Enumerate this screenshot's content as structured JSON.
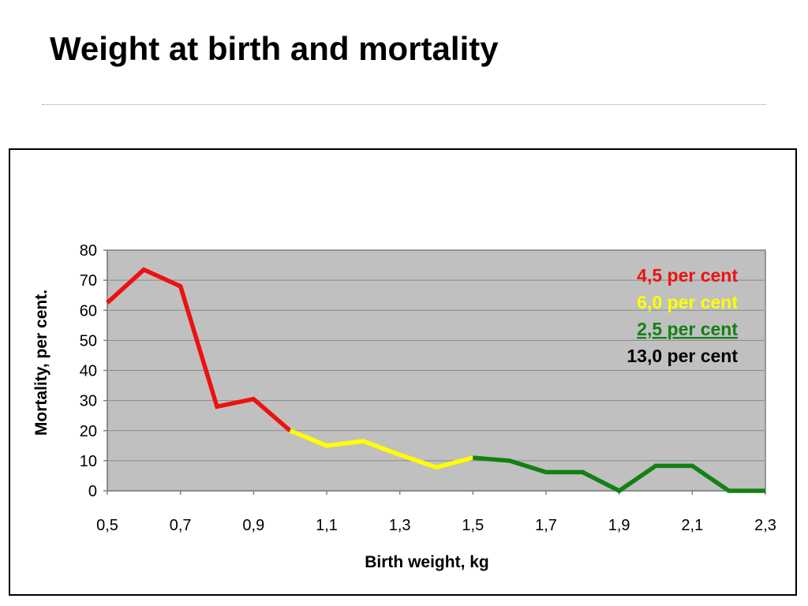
{
  "slide": {
    "title": "Weight at birth and mortality"
  },
  "chart_data": {
    "type": "line",
    "title": "",
    "xlabel": "Birth weight, kg",
    "ylabel": "Mortality, per cent.",
    "xlim": [
      0.5,
      2.3
    ],
    "ylim": [
      0,
      80
    ],
    "x_ticks": [
      "0,5",
      "0,7",
      "0,9",
      "1,1",
      "1,3",
      "1,5",
      "1,7",
      "1,9",
      "2,1",
      "2,3"
    ],
    "x_tick_values": [
      0.5,
      0.7,
      0.9,
      1.1,
      1.3,
      1.5,
      1.7,
      1.9,
      2.1,
      2.3
    ],
    "y_ticks": [
      "0",
      "10",
      "20",
      "30",
      "40",
      "50",
      "60",
      "70",
      "80"
    ],
    "y_tick_values": [
      0,
      10,
      20,
      30,
      40,
      50,
      60,
      70,
      80
    ],
    "grid": true,
    "plot_background": "#c0c0c0",
    "series": [
      {
        "color": "#ee1111",
        "x": [
          0.5,
          0.6,
          0.7,
          0.8,
          0.9,
          1.0
        ],
        "y": [
          62.5,
          73.5,
          68,
          28,
          30.5,
          20
        ]
      },
      {
        "color": "#ffff00",
        "x": [
          1.0,
          1.1,
          1.2,
          1.3,
          1.4,
          1.5
        ],
        "y": [
          20,
          15,
          16.5,
          12,
          7.8,
          11
        ]
      },
      {
        "color": "#138013",
        "x": [
          1.5,
          1.6,
          1.7,
          1.8,
          1.9,
          2.0,
          2.1,
          2.2,
          2.3
        ],
        "y": [
          11,
          10,
          6.2,
          6.2,
          0,
          8.3,
          8.3,
          0,
          0
        ]
      }
    ],
    "annotations": [
      {
        "text": "4,5 per cent",
        "color": "#ee1111",
        "underline": false
      },
      {
        "text": "6,0 per cent",
        "color": "#ffff00",
        "underline": false
      },
      {
        "text": "  2,5 per cent",
        "color": "#138013",
        "underline": true
      },
      {
        "text": "13,0 per cent",
        "color": "#000000",
        "underline": false
      }
    ]
  }
}
